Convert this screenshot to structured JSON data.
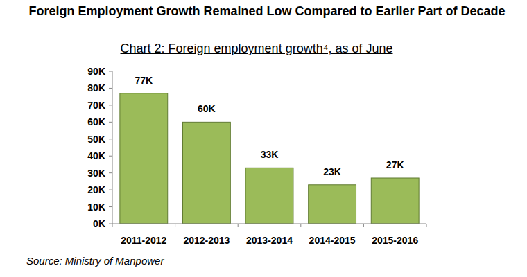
{
  "chart_data": {
    "type": "bar",
    "title": "Foreign Employment Growth Remained Low Compared to Earlier Part of Decade",
    "subtitle": "Chart 2:  Foreign employment growth⁴, as of June",
    "source": "Source: Ministry of Manpower",
    "categories": [
      "2011-2012",
      "2012-2013",
      "2013-2014",
      "2014-2015",
      "2015-2016"
    ],
    "values": [
      77000,
      60000,
      33000,
      23000,
      27000
    ],
    "value_labels": [
      "77K",
      "60K",
      "33K",
      "23K",
      "27K"
    ],
    "color": "#9bbb59",
    "ylim": [
      0,
      90000
    ],
    "yticks": [
      {
        "value": 0,
        "label": "0K"
      },
      {
        "value": 10000,
        "label": "10K"
      },
      {
        "value": 20000,
        "label": "20K"
      },
      {
        "value": 30000,
        "label": "30K"
      },
      {
        "value": 40000,
        "label": "40K"
      },
      {
        "value": 50000,
        "label": "50K"
      },
      {
        "value": 60000,
        "label": "60K"
      },
      {
        "value": 70000,
        "label": "70K"
      },
      {
        "value": 80000,
        "label": "80K"
      },
      {
        "value": 90000,
        "label": "90K"
      }
    ],
    "data_labels": true,
    "grid": false
  }
}
